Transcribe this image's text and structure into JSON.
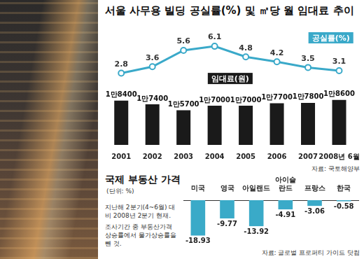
{
  "chart_data": [
    {
      "type": "bar",
      "title": "서울 사무용 빌딩 공실률(%) 및 ㎡당 월 임대료 추이",
      "categories": [
        "2001",
        "2002",
        "2003",
        "2004",
        "2005",
        "2006",
        "2007",
        "2008년 6월"
      ],
      "series": [
        {
          "name": "임대료(원)",
          "type": "bar",
          "color": "#1a1a1a",
          "values": [
            18400,
            17400,
            15700,
            17000,
            17000,
            17700,
            17800,
            18600
          ],
          "value_labels": [
            "1만8400",
            "1만7400",
            "1만5700",
            "1만7000",
            "1만7000",
            "1만7700",
            "1만7800",
            "1만8600"
          ]
        },
        {
          "name": "공실률(%)",
          "type": "line",
          "color": "#3aa9c9",
          "axis": "y2",
          "marker": "circle",
          "values": [
            2.8,
            3.6,
            5.6,
            6.1,
            4.8,
            4.2,
            3.5,
            3.1
          ]
        }
      ],
      "ylim": [
        6000,
        38000
      ],
      "yticks": [
        6000,
        38000
      ],
      "y2lim": [
        -6,
        8
      ],
      "y2ticks": [
        -6,
        8
      ],
      "grid": false,
      "data_labels": true,
      "tick_labels": "x",
      "source": "자료: 국토해양부"
    },
    {
      "type": "bar",
      "title": "국제 부동산 가격",
      "subtitle": "(단위: %)",
      "categories": [
        "미국",
        "영국",
        "아일랜드",
        "아이슬란드",
        "프랑스",
        "한국"
      ],
      "values": [
        -18.93,
        -9.77,
        -13.92,
        -4.91,
        -3.06,
        -0.58
      ],
      "color": "#3aaac8",
      "ylim": [
        -24,
        0
      ],
      "yticks": [
        -24,
        0
      ],
      "grid": false,
      "data_labels": true,
      "tick_labels": "x",
      "annotations": [
        "지난해 2분기(4~6월) 대비 2008년 2분기 현재.",
        "조사기간 중 부동산가격상승률에서 물가상승률을 뺀 것."
      ],
      "source": "자료: 글로벌 프로퍼티 가이드 닷컴"
    }
  ]
}
